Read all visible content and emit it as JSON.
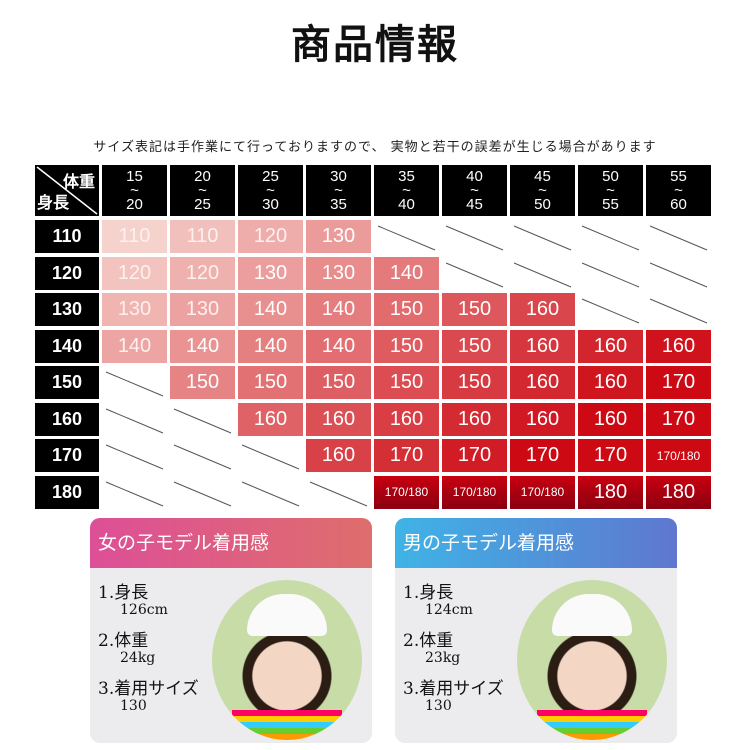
{
  "title": "商品情報",
  "note": "サイズ表記は手作業にて行っておりますので、 実物と若干の誤差が生じる場合があります",
  "table": {
    "corner_weight": "体重",
    "corner_height": "身長",
    "weights": [
      [
        "15",
        "20"
      ],
      [
        "20",
        "25"
      ],
      [
        "25",
        "30"
      ],
      [
        "30",
        "35"
      ],
      [
        "35",
        "40"
      ],
      [
        "40",
        "45"
      ],
      [
        "45",
        "50"
      ],
      [
        "50",
        "55"
      ],
      [
        "55",
        "60"
      ]
    ],
    "rows": [
      {
        "height": "110",
        "sizes": [
          "110",
          "110",
          "120",
          "130",
          null,
          null,
          null,
          null,
          null
        ]
      },
      {
        "height": "120",
        "sizes": [
          "120",
          "120",
          "130",
          "130",
          "140",
          null,
          null,
          null,
          null
        ]
      },
      {
        "height": "130",
        "sizes": [
          "130",
          "130",
          "140",
          "140",
          "150",
          "150",
          "160",
          null,
          null
        ]
      },
      {
        "height": "140",
        "sizes": [
          "140",
          "140",
          "140",
          "140",
          "150",
          "150",
          "160",
          "160",
          "160"
        ]
      },
      {
        "height": "150",
        "sizes": [
          null,
          "150",
          "150",
          "150",
          "150",
          "150",
          "160",
          "160",
          "170"
        ]
      },
      {
        "height": "160",
        "sizes": [
          null,
          null,
          "160",
          "160",
          "160",
          "160",
          "160",
          "160",
          "170"
        ]
      },
      {
        "height": "170",
        "sizes": [
          null,
          null,
          null,
          "160",
          "170",
          "170",
          "170",
          "170",
          "170/180"
        ]
      },
      {
        "height": "180",
        "sizes": [
          null,
          null,
          null,
          null,
          "170/180",
          "170/180",
          "170/180",
          "180",
          "180"
        ]
      }
    ]
  },
  "girl": {
    "title": "女の子モデル着用感",
    "height_label": "1.身長",
    "height": "126cm",
    "weight_label": "2.体重",
    "weight": "24kg",
    "size_label": "3.着用サイズ",
    "size": "130",
    "colors": [
      "#dd4f97",
      "#de6e6c"
    ]
  },
  "boy": {
    "title": "男の子モデル着用感",
    "height_label": "1.身長",
    "height": "124cm",
    "weight_label": "2.体重",
    "weight": "23kg",
    "size_label": "3.着用サイズ",
    "size": "130",
    "colors": [
      "#3fb3e6",
      "#5f77cf"
    ]
  }
}
